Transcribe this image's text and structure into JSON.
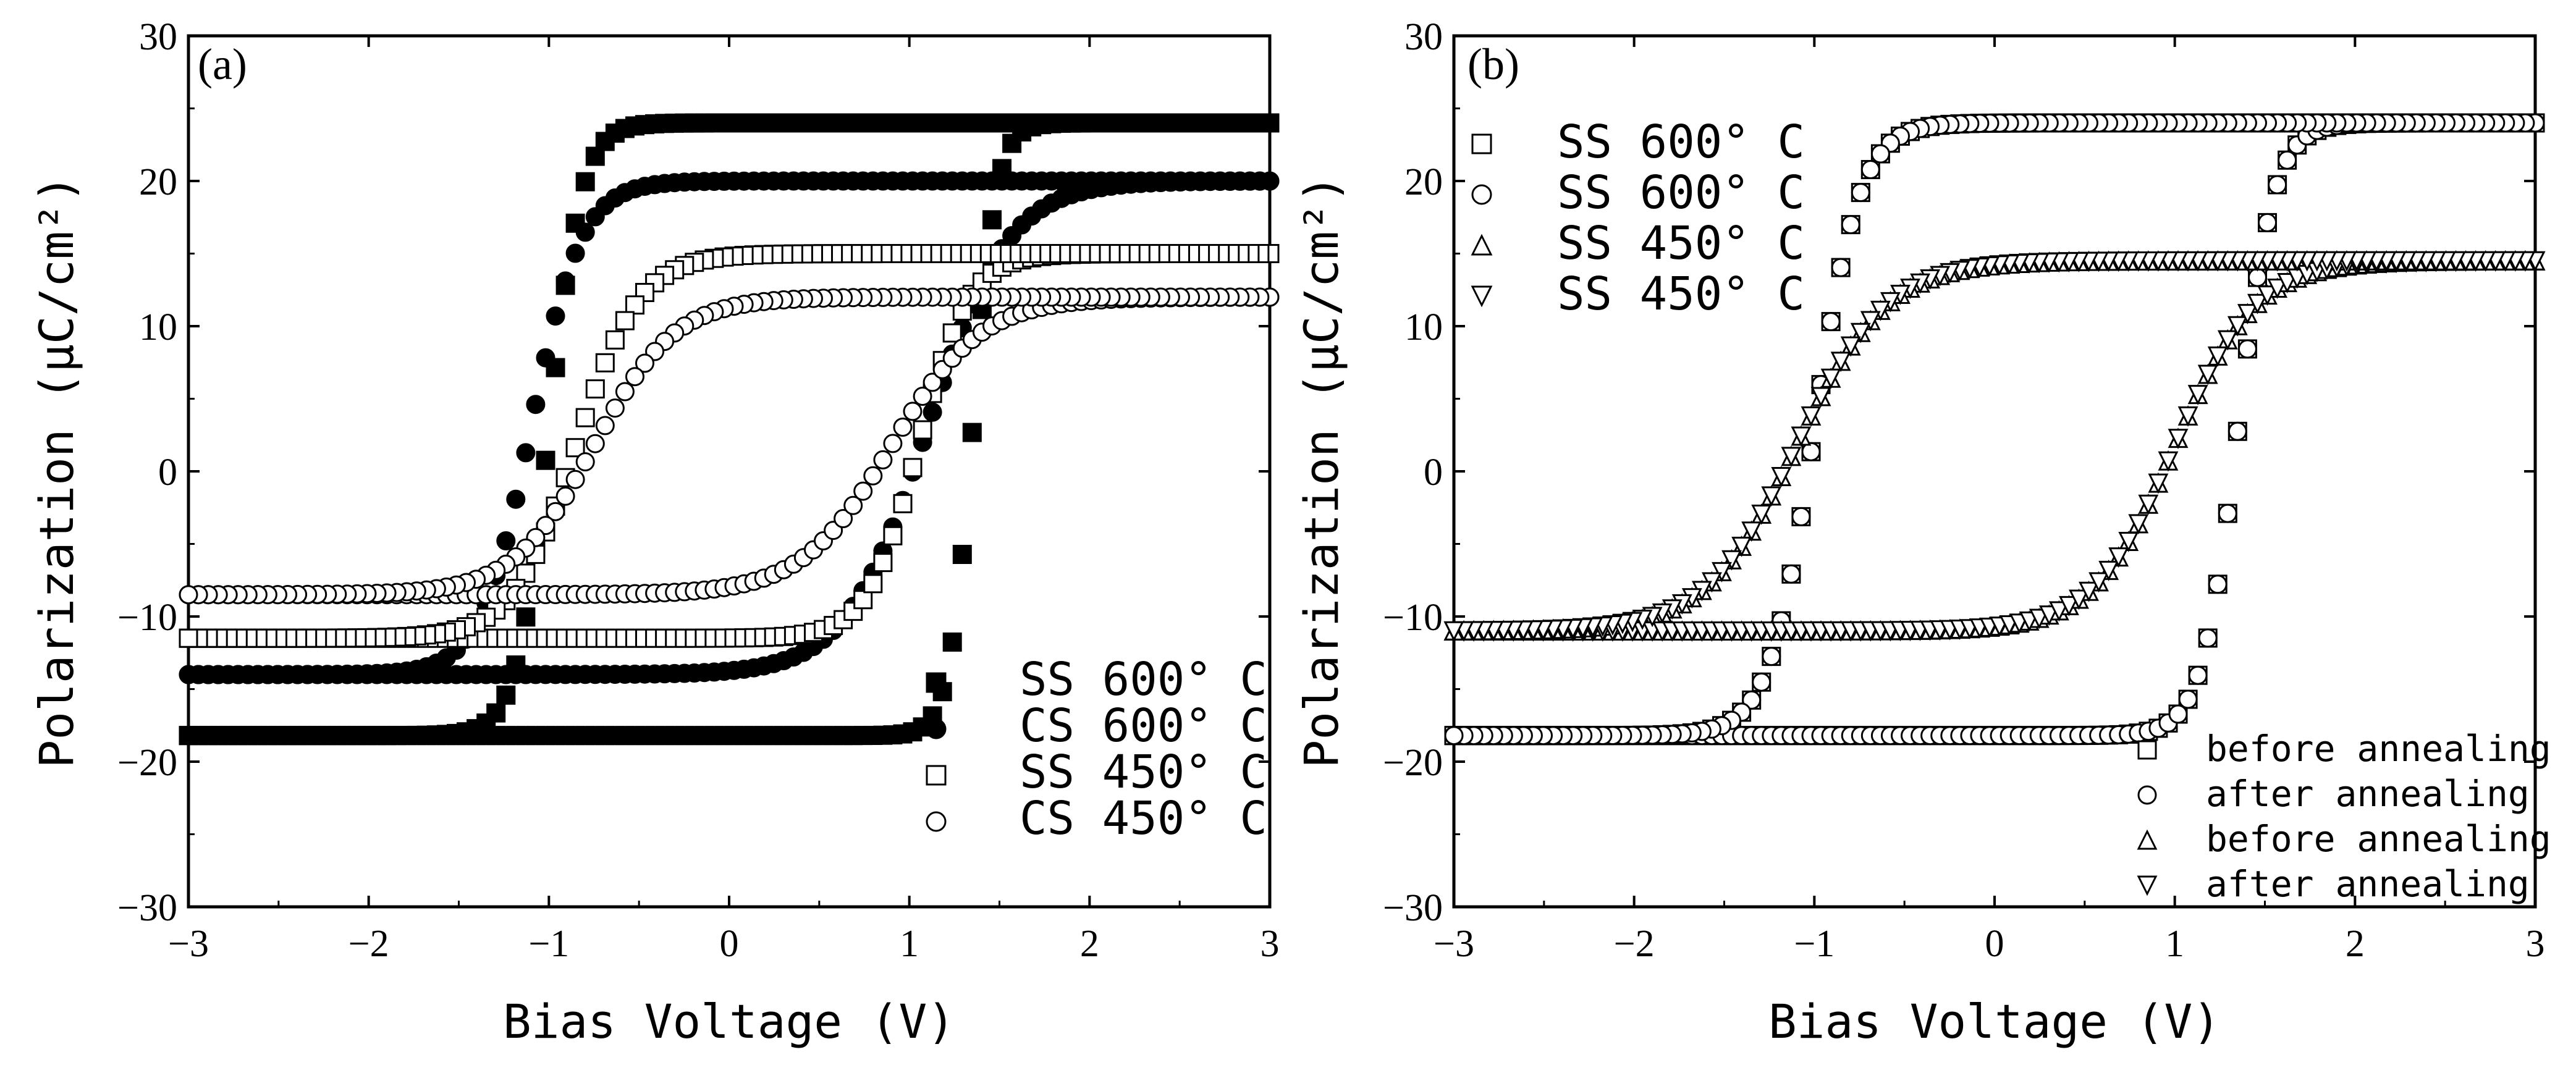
{
  "chart_data": [
    {
      "type": "scatter",
      "panel": "(a)",
      "xlabel": "Bias Voltage (V)",
      "ylabel": "Polarization (μC/cm²)",
      "xlim": [
        -3,
        3
      ],
      "ylim": [
        -30,
        30
      ],
      "xticks": [
        -3,
        -2,
        -1,
        0,
        1,
        2,
        3
      ],
      "yticks": [
        -30,
        -20,
        -10,
        0,
        10,
        20,
        30
      ],
      "xtick_labels": [
        "−3",
        "−2",
        "−1",
        "0",
        "1",
        "2",
        "3"
      ],
      "ytick_labels": [
        "−30",
        "−20",
        "−10",
        "0",
        "10",
        "20",
        "30"
      ],
      "legend_position": "bottom-right",
      "series": [
        {
          "name": "SS 600° C",
          "marker": "square",
          "fill": "filled",
          "pr_pos": 24.0,
          "pr_neg": -18.2,
          "ec_up": 1.35,
          "ec_down": -1.0,
          "width_up": 0.13,
          "width_down": 0.18,
          "points": 110
        },
        {
          "name": "CS 600° C",
          "marker": "circle",
          "fill": "filled",
          "pr_pos": 20.0,
          "pr_neg": -14.0,
          "ec_up": 1.1,
          "ec_down": -1.1,
          "width_up": 0.45,
          "width_down": 0.28,
          "points": 110
        },
        {
          "name": "SS 450° C",
          "marker": "square",
          "fill": "open",
          "pr_pos": 15.0,
          "pr_neg": -11.5,
          "ec_up": 1.05,
          "ec_down": -0.85,
          "width_up": 0.28,
          "width_down": 0.35,
          "points": 110
        },
        {
          "name": "CS 450° C",
          "marker": "circle",
          "fill": "open",
          "pr_pos": 12.0,
          "pr_neg": -8.5,
          "ec_up": 0.9,
          "ec_down": -0.75,
          "width_up": 0.5,
          "width_down": 0.45,
          "points": 110
        }
      ]
    },
    {
      "type": "scatter",
      "panel": "(b)",
      "xlabel": "Bias Voltage (V)",
      "ylabel": "Polarization (μC/cm²)",
      "xlim": [
        -3,
        3
      ],
      "ylim": [
        -30,
        30
      ],
      "xticks": [
        -3,
        -2,
        -1,
        0,
        1,
        2,
        3
      ],
      "yticks": [
        -30,
        -20,
        -10,
        0,
        10,
        20,
        30
      ],
      "xtick_labels": [
        "−3",
        "−2",
        "−1",
        "0",
        "1",
        "2",
        "3"
      ],
      "ytick_labels": [
        "−30",
        "−20",
        "−10",
        "0",
        "10",
        "20",
        "30"
      ],
      "legend_position": "top-left",
      "legend2_position": "bottom-right",
      "legend_labels": [
        "SS 600° C",
        "SS 600° C",
        "SS 450° C",
        "SS 450° C"
      ],
      "legend2_labels": [
        "before annealing",
        "after  annealing",
        "before annealing",
        "after  annealing"
      ],
      "series": [
        {
          "name": "SS 600° C before annealing",
          "marker": "square",
          "fill": "open",
          "pr_pos": 24.0,
          "pr_neg": -18.2,
          "ec_up": 1.35,
          "ec_down": -1.0,
          "width_up": 0.2,
          "width_down": 0.25,
          "points": 110
        },
        {
          "name": "SS 600° C after annealing",
          "marker": "circle",
          "fill": "open",
          "pr_pos": 24.0,
          "pr_neg": -18.2,
          "ec_up": 1.35,
          "ec_down": -1.0,
          "width_up": 0.2,
          "width_down": 0.25,
          "points": 110
        },
        {
          "name": "SS 450° C before annealing",
          "marker": "triangle-up",
          "fill": "open",
          "pr_pos": 14.5,
          "pr_neg": -11.0,
          "ec_up": 1.0,
          "ec_down": -1.1,
          "width_up": 0.45,
          "width_down": 0.5,
          "points": 110
        },
        {
          "name": "SS 450° C after annealing",
          "marker": "triangle-down",
          "fill": "open",
          "pr_pos": 14.5,
          "pr_neg": -11.0,
          "ec_up": 1.0,
          "ec_down": -1.1,
          "width_up": 0.45,
          "width_down": 0.5,
          "points": 110
        }
      ]
    }
  ]
}
